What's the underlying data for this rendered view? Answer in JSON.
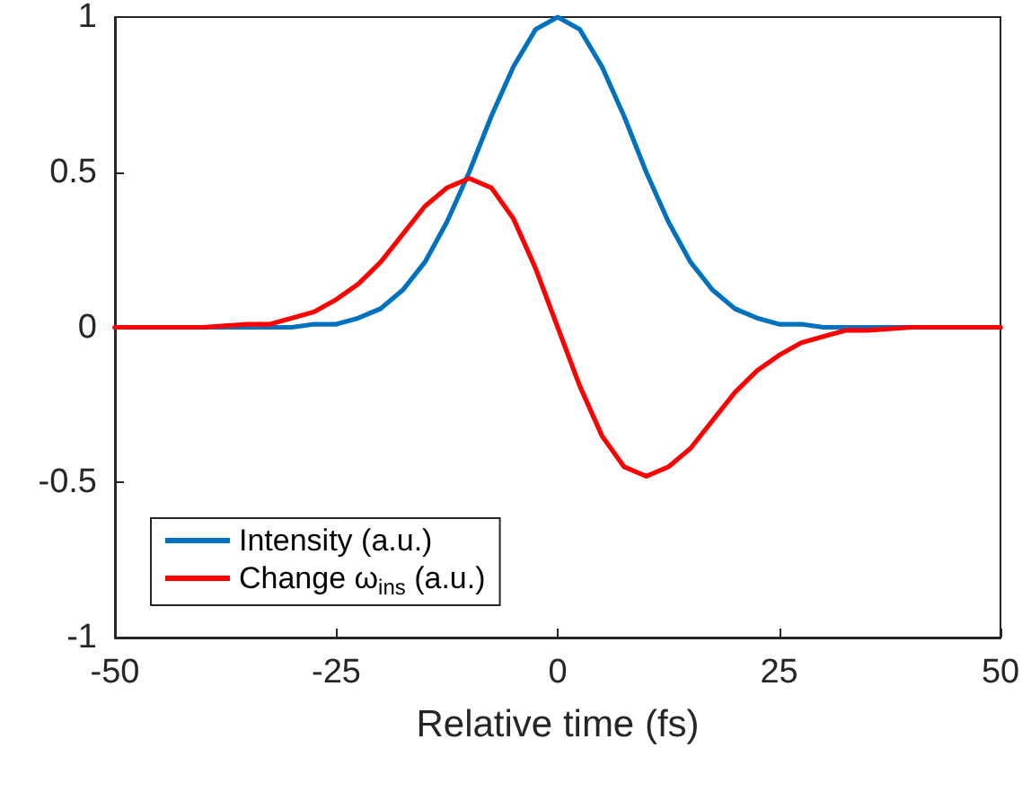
{
  "chart_data": {
    "type": "line",
    "xlabel": "Relative time (fs)",
    "x": [
      -50,
      -40,
      -35,
      -32.5,
      -30,
      -27.5,
      -25,
      -22.5,
      -20,
      -17.5,
      -15,
      -12.5,
      -10,
      -7.5,
      -5,
      -2.5,
      0,
      2.5,
      5,
      7.5,
      10,
      12.5,
      15,
      17.5,
      20,
      22.5,
      25,
      27.5,
      30,
      32.5,
      35,
      40,
      50
    ],
    "series": [
      {
        "name": "Intensity (a.u.)",
        "color": "#0072bd",
        "values": [
          0,
          0,
          0,
          0,
          0,
          0.01,
          0.01,
          0.03,
          0.06,
          0.12,
          0.21,
          0.34,
          0.5,
          0.68,
          0.84,
          0.96,
          1,
          0.96,
          0.84,
          0.68,
          0.5,
          0.34,
          0.21,
          0.12,
          0.06,
          0.03,
          0.01,
          0.01,
          0,
          0,
          0,
          0,
          0
        ]
      },
      {
        "name": "Change ω$_{ins}$ (a.u.)",
        "color": "#ff0000",
        "values": [
          0,
          0,
          0.01,
          0.01,
          0.03,
          0.05,
          0.09,
          0.14,
          0.21,
          0.3,
          0.39,
          0.45,
          0.48,
          0.45,
          0.35,
          0.19,
          0,
          -0.19,
          -0.35,
          -0.45,
          -0.48,
          -0.45,
          -0.39,
          -0.3,
          -0.21,
          -0.14,
          -0.09,
          -0.05,
          -0.03,
          -0.01,
          -0.01,
          0,
          0
        ]
      }
    ],
    "xlim": [
      -50,
      50
    ],
    "xticks": [
      -50,
      -25,
      0,
      25,
      50
    ],
    "ylim": [
      -1,
      1
    ],
    "yticks": [
      -1,
      -0.5,
      0,
      0.5,
      1
    ],
    "grid": false,
    "legend": "bottom left",
    "marker": "none",
    "line_style": "solid"
  }
}
